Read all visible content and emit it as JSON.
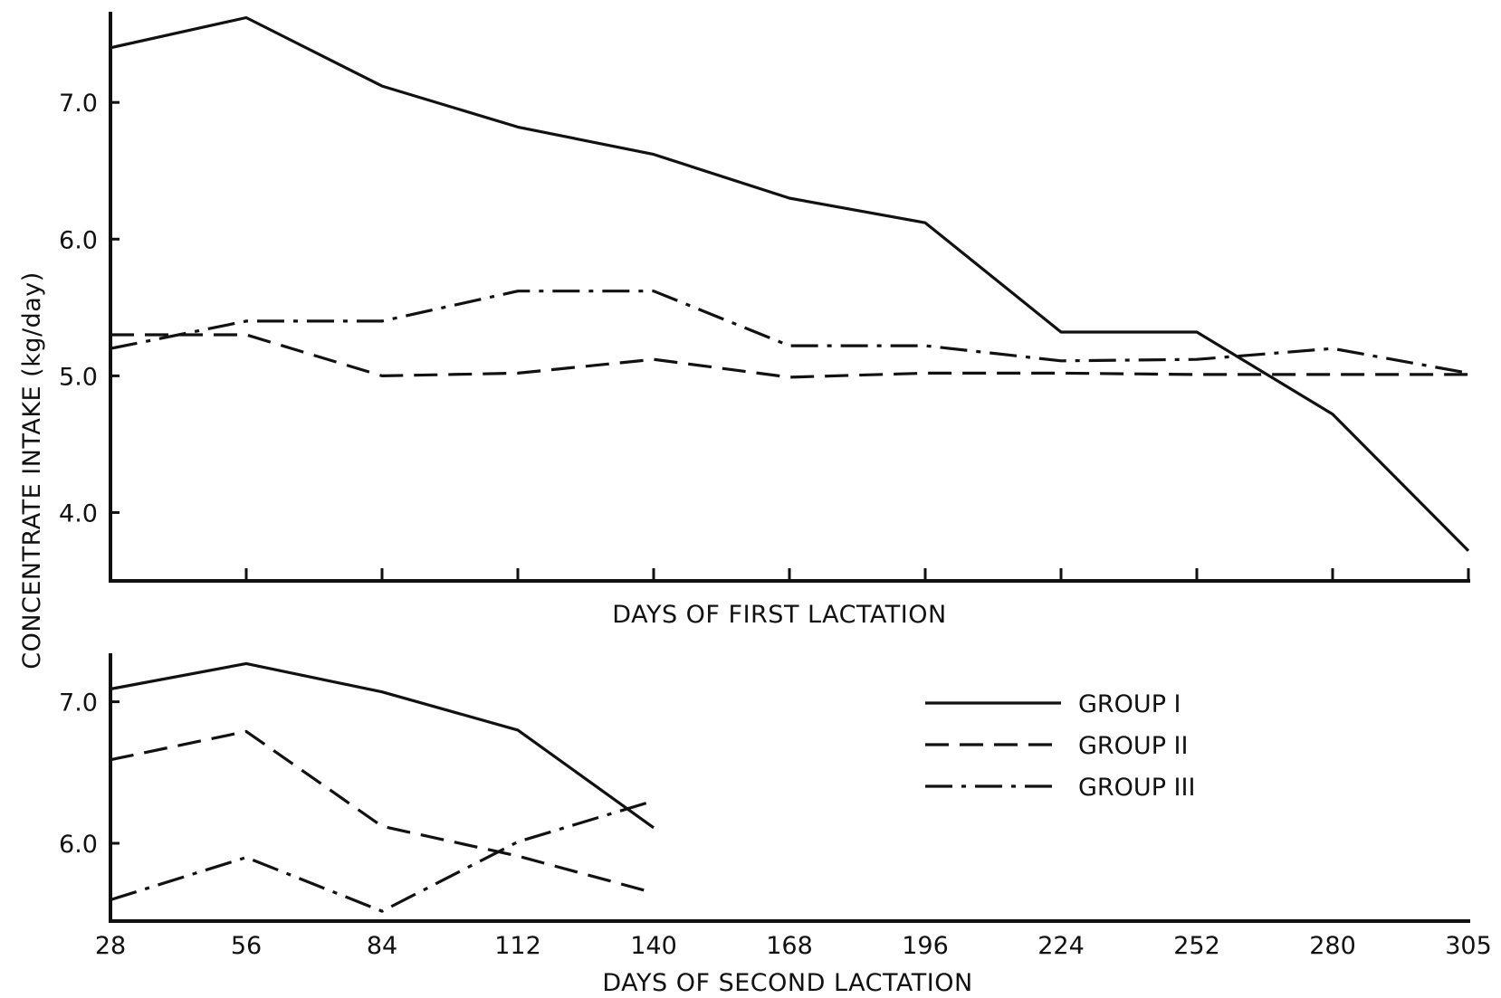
{
  "chart_data": [
    {
      "type": "line",
      "xlabel": "DAYS OF FIRST LACTATION",
      "ylabel": "CONCENTRATE INTAKE (kg/day)",
      "x": [
        28,
        56,
        84,
        112,
        140,
        168,
        196,
        224,
        252,
        280,
        305
      ],
      "ylim": [
        3.5,
        7.65
      ],
      "yticks": [
        "4.0",
        "5.0",
        "6.0",
        "7.0"
      ],
      "series": [
        {
          "name": "GROUP I",
          "style": "solid",
          "values": [
            7.4,
            7.62,
            7.12,
            6.82,
            6.62,
            6.3,
            6.12,
            5.32,
            5.32,
            4.72,
            3.72
          ]
        },
        {
          "name": "GROUP II",
          "style": "dashed",
          "values": [
            5.3,
            5.3,
            5.0,
            5.02,
            5.12,
            4.99,
            5.02,
            5.02,
            5.01,
            5.01,
            5.01
          ]
        },
        {
          "name": "GROUP III",
          "style": "dashdot",
          "values": [
            5.2,
            5.4,
            5.4,
            5.62,
            5.62,
            5.22,
            5.22,
            5.11,
            5.12,
            5.2,
            5.02
          ]
        }
      ]
    },
    {
      "type": "line",
      "xlabel": "DAYS OF SECOND LACTATION",
      "ylabel": "CONCENTRATE INTAKE (kg/day)",
      "x": [
        28,
        56,
        84,
        112,
        140
      ],
      "xticks": [
        "28",
        "56",
        "84",
        "112",
        "140",
        "168",
        "196",
        "224",
        "252",
        "280",
        "305"
      ],
      "ylim": [
        5.45,
        7.33
      ],
      "yticks": [
        "6.0",
        "7.0"
      ],
      "series": [
        {
          "name": "GROUP I",
          "style": "solid",
          "values": [
            7.09,
            7.27,
            7.07,
            6.8,
            6.11
          ]
        },
        {
          "name": "GROUP II",
          "style": "dashed",
          "values": [
            6.59,
            6.79,
            6.12,
            5.91,
            5.65
          ]
        },
        {
          "name": "GROUP III",
          "style": "dashdot",
          "values": [
            5.6,
            5.9,
            5.52,
            6.01,
            6.3
          ]
        }
      ]
    }
  ],
  "legend": {
    "position": "right of lower panel",
    "items": [
      {
        "label": "GROUP I",
        "style": "solid"
      },
      {
        "label": "GROUP II",
        "style": "dashed"
      },
      {
        "label": "GROUP III",
        "style": "dashdot"
      }
    ]
  },
  "colors": {
    "ink": "#111111",
    "background": "#ffffff"
  }
}
